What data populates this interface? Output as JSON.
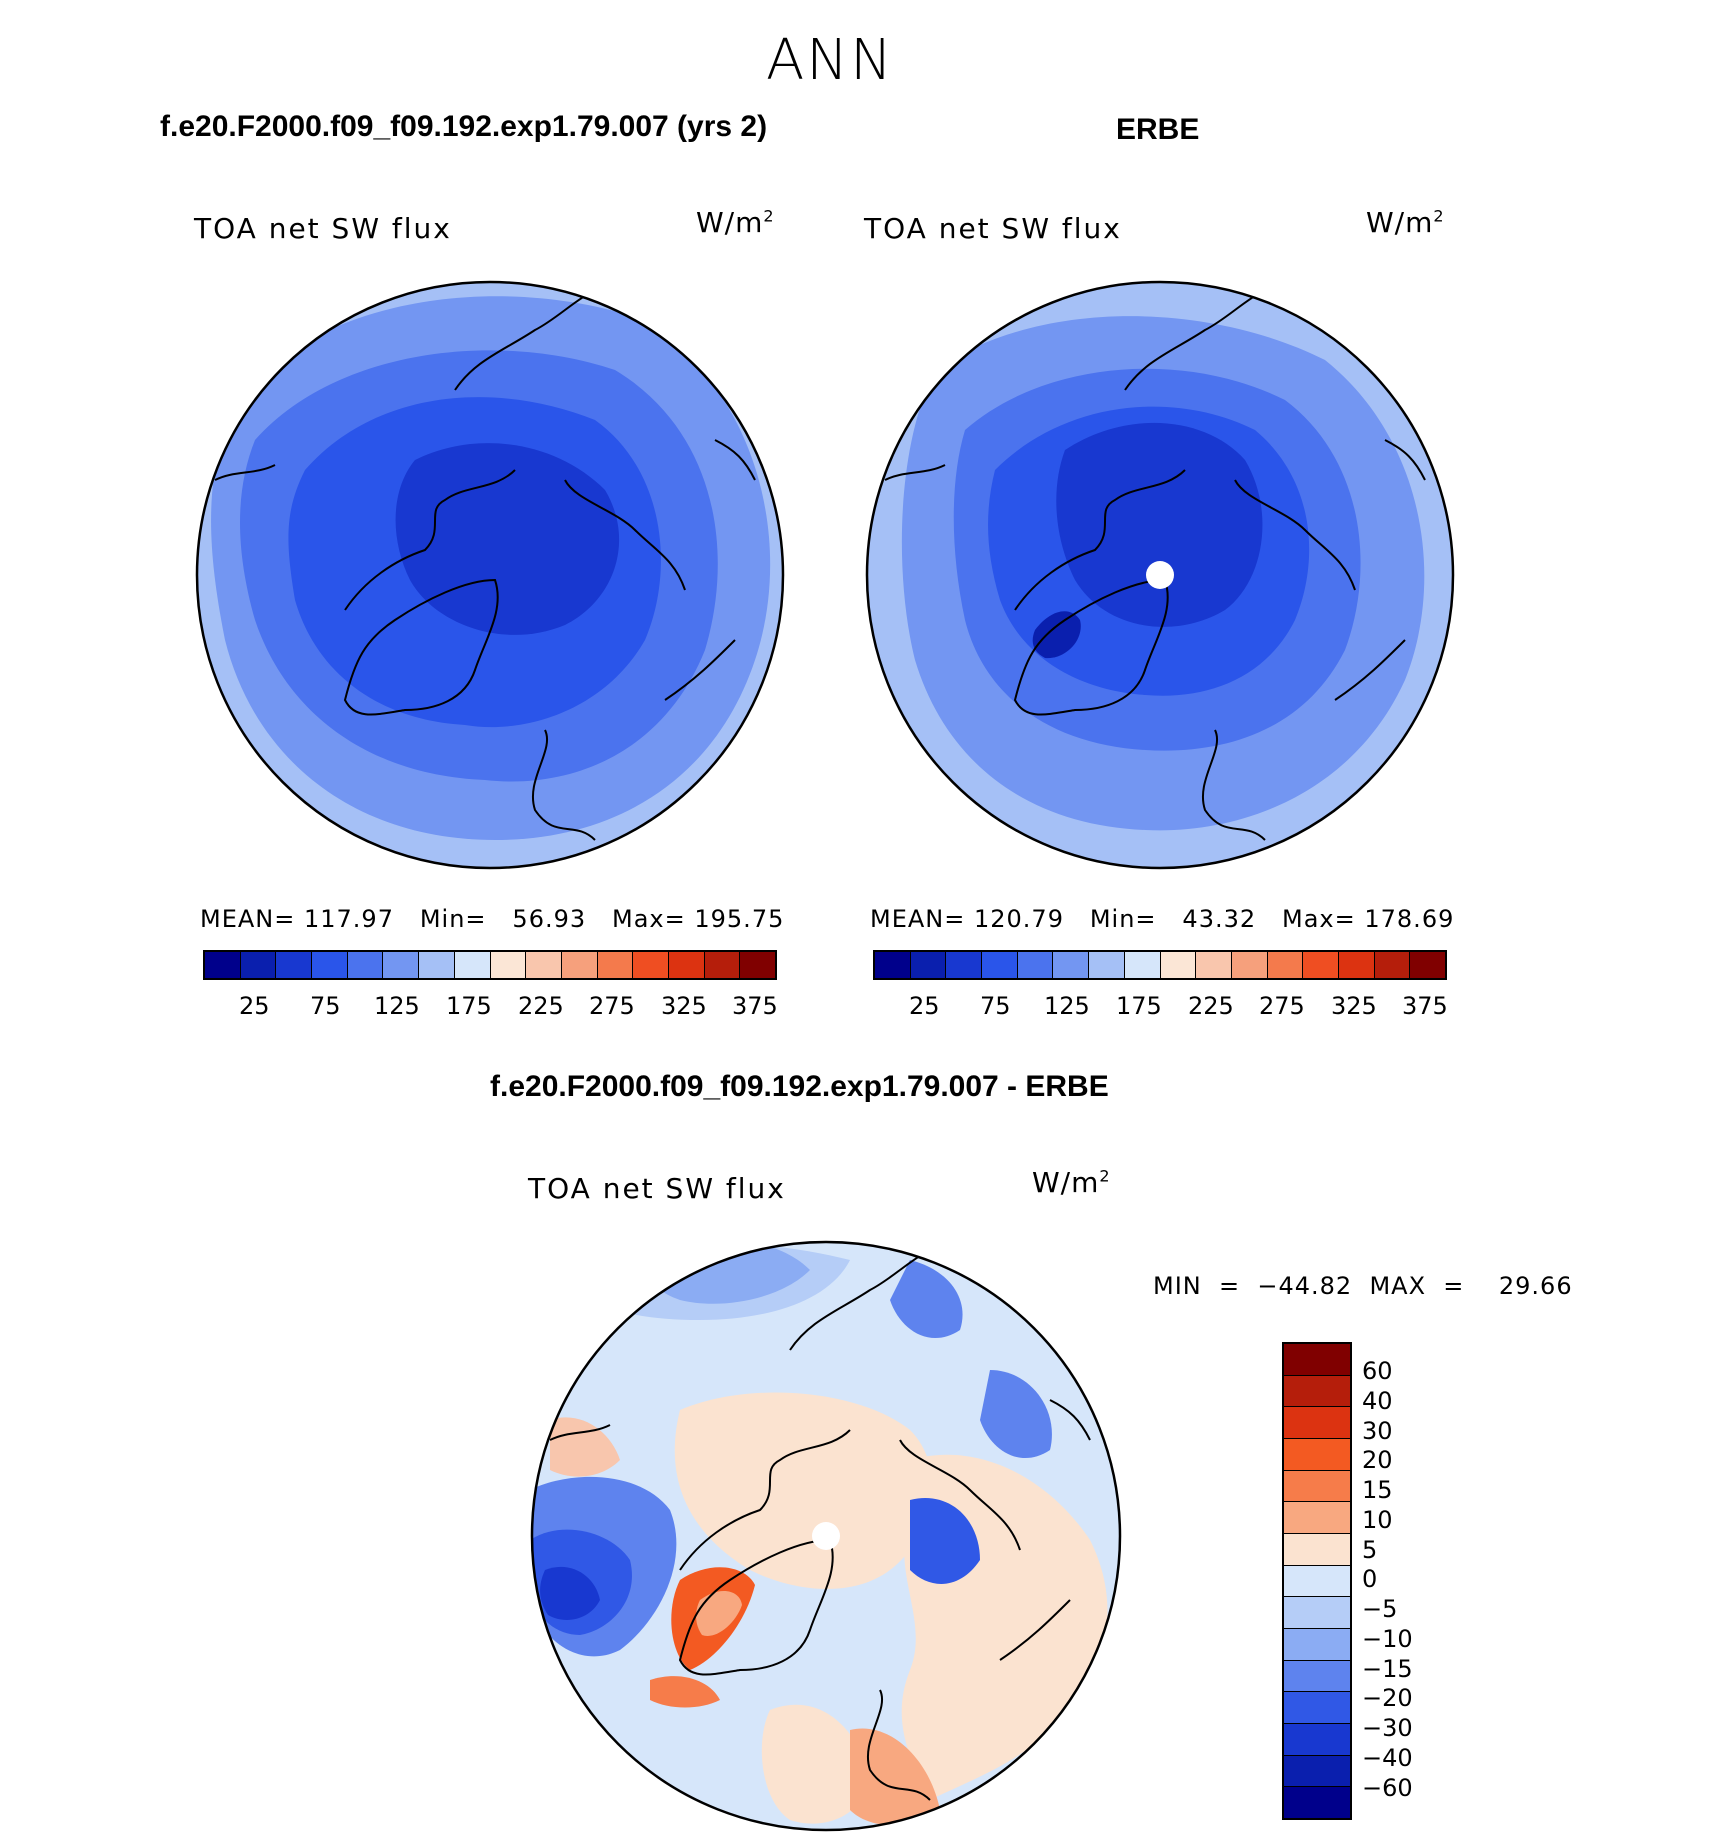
{
  "page_title": "ANN",
  "panels": [
    {
      "title": "f.e20.F2000.f09_f09.192.exp1.79.007 (yrs 2)",
      "variable": "TOA net SW flux",
      "units_base": "W/m",
      "units_exp": "2",
      "stats": "MEAN= 117.97   Min=   56.93   Max= 195.75"
    },
    {
      "title": "ERBE",
      "variable": "TOA net SW flux",
      "units_base": "W/m",
      "units_exp": "2",
      "stats": "MEAN= 120.79   Min=   43.32   Max= 178.69"
    },
    {
      "title": "f.e20.F2000.f09_f09.192.exp1.79.007 - ERBE",
      "variable": "TOA net SW flux",
      "units_base": "W/m",
      "units_exp": "2",
      "stats": "MIN  =  −44.82  MAX  =    29.66"
    }
  ],
  "colorbar_abs": {
    "colors": [
      "#00008b",
      "#0a1fae",
      "#1838d0",
      "#2a55ea",
      "#4b73ee",
      "#7396f2",
      "#a5c0f6",
      "#d6e6fa",
      "#fbe6d6",
      "#f9c6ad",
      "#f6a07c",
      "#f47a4c",
      "#ef4e22",
      "#dc3311",
      "#b51e0b",
      "#800000"
    ],
    "ticks": [
      "25",
      "75",
      "125",
      "175",
      "225",
      "275",
      "325",
      "375"
    ]
  },
  "colorbar_diff": {
    "colors": [
      "#800000",
      "#b51e0b",
      "#dc3311",
      "#f35a22",
      "#f67c4a",
      "#f8a880",
      "#fbe3d0",
      "#d6e6fa",
      "#b5cdf7",
      "#8bacf3",
      "#5e83ee",
      "#3058e6",
      "#1838d0",
      "#0a1fae",
      "#00008b"
    ],
    "ticks": [
      "60",
      "40",
      "30",
      "20",
      "15",
      "10",
      "5",
      "0",
      "−5",
      "−10",
      "−15",
      "−20",
      "−30",
      "−40",
      "−60"
    ]
  }
}
